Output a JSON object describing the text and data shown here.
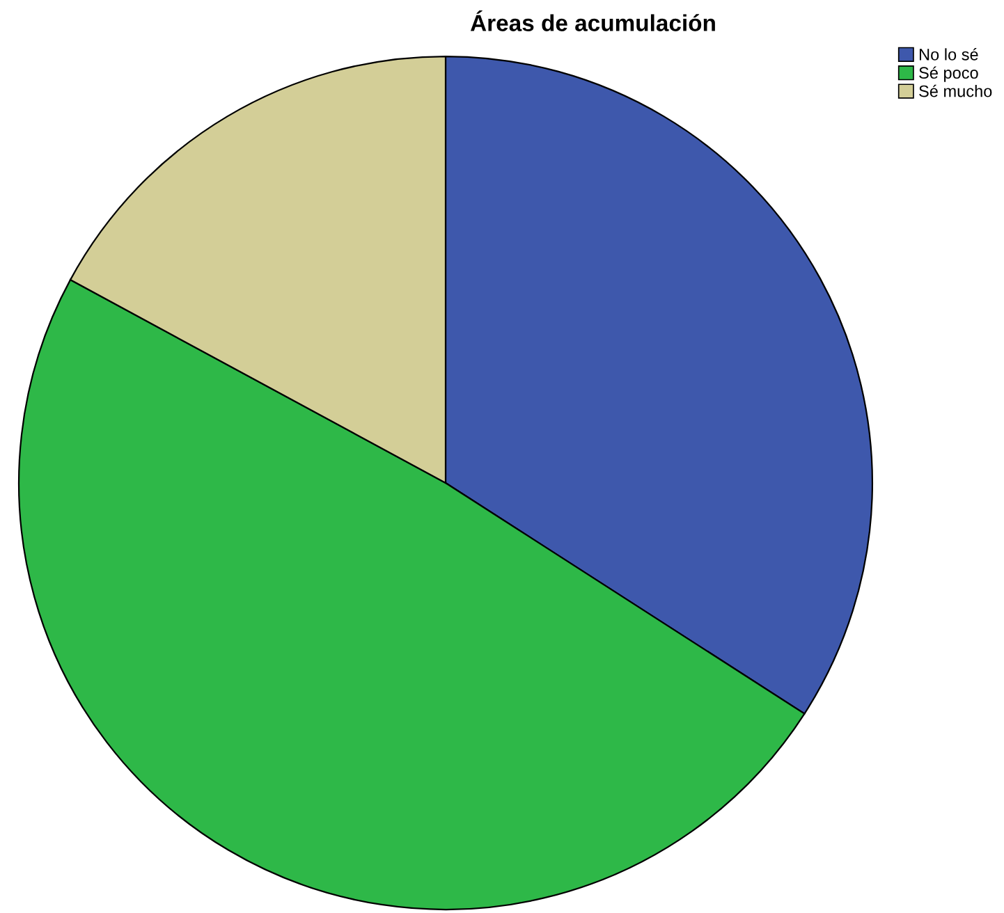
{
  "chart_data": {
    "type": "pie",
    "title": "Áreas de acumulación",
    "categories": [
      "No lo sé",
      "Sé poco",
      "Sé mucho"
    ],
    "values": [
      34.1,
      48.8,
      17.1
    ],
    "colors": [
      "#3e58ac",
      "#2eb848",
      "#d3ce97"
    ],
    "legend": "top right"
  }
}
